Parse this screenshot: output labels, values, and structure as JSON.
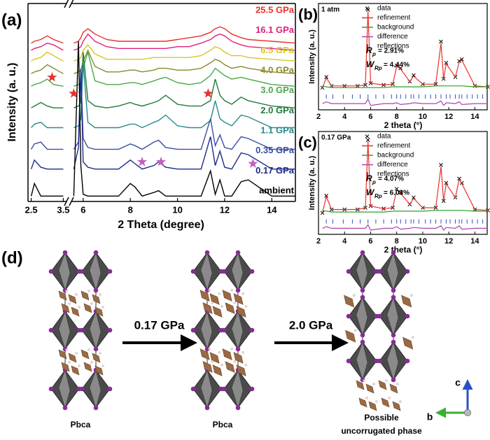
{
  "chart_data": [
    {
      "type": "line",
      "panel_label": "(a)",
      "x_label": "2 Theta (degree)",
      "y_label": "Intensity (a. u.)",
      "xlim": [
        2.4,
        15
      ],
      "xbreak": [
        3.6,
        5.5
      ],
      "ylim": [
        0,
        11
      ],
      "xticks": [
        2.5,
        3.5,
        6,
        8,
        10,
        12,
        14
      ],
      "x": [
        2.5,
        2.6,
        2.8,
        3.0,
        3.2,
        3.5,
        5.6,
        5.8,
        5.9,
        6.0,
        6.2,
        6.5,
        7.0,
        7.5,
        8.0,
        8.2,
        8.5,
        9.0,
        9.2,
        9.5,
        10.0,
        10.5,
        11.0,
        11.4,
        11.6,
        11.8,
        12.0,
        12.3,
        12.7,
        13.0,
        14.0,
        15.0
      ],
      "series": [
        {
          "name": "25.5 GPa",
          "color": "#e8302a",
          "values": [
            8.8,
            8.9,
            9.0,
            9.2,
            9.0,
            8.8,
            8.8,
            8.9,
            9.1,
            9.4,
            9.6,
            9.3,
            9.0,
            8.9,
            8.9,
            8.9,
            8.9,
            8.9,
            8.9,
            8.9,
            9.0,
            9.1,
            9.2,
            9.4,
            9.6,
            9.7,
            9.6,
            9.3,
            9.1,
            9.0,
            8.9,
            8.8
          ]
        },
        {
          "name": "16.1 GPa",
          "color": "#e0207a",
          "values": [
            8.4,
            8.5,
            8.6,
            8.8,
            8.7,
            8.4,
            8.4,
            8.5,
            8.6,
            8.9,
            9.3,
            8.9,
            8.6,
            8.5,
            8.5,
            8.5,
            8.5,
            8.5,
            8.5,
            8.5,
            8.6,
            8.6,
            8.8,
            9.0,
            9.2,
            9.3,
            9.2,
            8.9,
            8.7,
            8.6,
            8.5,
            8.4
          ]
        },
        {
          "name": "6.5 GPa",
          "color": "#d4c82a",
          "values": [
            7.8,
            7.9,
            8.0,
            8.3,
            8.1,
            7.8,
            7.8,
            7.9,
            8.0,
            8.4,
            8.7,
            8.2,
            7.9,
            7.9,
            7.9,
            7.9,
            7.9,
            8.0,
            8.0,
            8.0,
            8.0,
            8.0,
            8.1,
            8.4,
            8.6,
            8.5,
            8.3,
            8.1,
            8.1,
            8.0,
            7.9,
            7.8
          ]
        },
        {
          "name": "4.0 GPa",
          "color": "#8a8a2a",
          "values": [
            7.1,
            7.2,
            7.3,
            7.6,
            7.4,
            7.1,
            7.1,
            7.2,
            7.3,
            7.8,
            8.4,
            7.5,
            7.2,
            7.2,
            7.3,
            7.3,
            7.2,
            7.3,
            7.4,
            7.4,
            7.3,
            7.3,
            7.4,
            7.7,
            7.9,
            7.8,
            7.6,
            7.4,
            7.5,
            7.4,
            7.2,
            7.1
          ]
        },
        {
          "name": "3.0 GPa",
          "color": "#4aa84a",
          "values": [
            6.4,
            6.5,
            6.6,
            6.8,
            6.5,
            6.4,
            6.4,
            6.5,
            6.6,
            7.4,
            8.3,
            6.7,
            6.5,
            6.5,
            6.6,
            6.6,
            6.5,
            6.7,
            6.8,
            6.9,
            6.6,
            6.5,
            6.6,
            7.0,
            7.4,
            7.2,
            7.0,
            6.8,
            6.9,
            6.8,
            6.5,
            6.4
          ]
        },
        {
          "name": "2.0 GPa",
          "color": "#1e7a3a",
          "values": [
            5.2,
            5.3,
            5.5,
            5.3,
            5.2,
            5.2,
            5.2,
            5.3,
            5.5,
            8.3,
            5.6,
            5.3,
            5.2,
            5.3,
            5.5,
            5.4,
            5.3,
            5.5,
            5.6,
            5.9,
            5.4,
            5.3,
            5.3,
            5.6,
            6.8,
            5.9,
            5.6,
            5.4,
            5.8,
            5.6,
            5.3,
            5.2
          ]
        },
        {
          "name": "1.1 GPa",
          "color": "#2a8a8a",
          "values": [
            4.1,
            4.3,
            4.4,
            4.1,
            4.1,
            4.1,
            4.1,
            4.2,
            4.6,
            7.7,
            4.4,
            4.1,
            4.1,
            4.1,
            4.3,
            4.3,
            4.1,
            4.4,
            4.5,
            4.8,
            4.2,
            4.1,
            4.1,
            4.5,
            5.6,
            4.6,
            4.4,
            4.2,
            4.8,
            4.7,
            4.1,
            4.1
          ]
        },
        {
          "name": "0.35 GPa",
          "color": "#3a4fa0",
          "values": [
            2.9,
            3.2,
            3.3,
            2.9,
            2.9,
            2.9,
            2.9,
            3.3,
            7.4,
            3.5,
            3.0,
            2.9,
            2.9,
            2.9,
            3.2,
            3.1,
            2.9,
            3.3,
            3.4,
            3.0,
            2.9,
            2.9,
            2.9,
            4.6,
            3.1,
            3.7,
            3.0,
            2.9,
            3.6,
            3.5,
            2.9,
            2.9
          ]
        },
        {
          "name": "0.17 GPa",
          "color": "#1c2a8a",
          "values": [
            1.8,
            2.3,
            1.9,
            1.8,
            1.8,
            1.8,
            1.8,
            3.0,
            7.3,
            2.2,
            1.9,
            1.8,
            1.8,
            1.8,
            2.3,
            2.1,
            1.8,
            2.0,
            2.2,
            1.9,
            1.8,
            1.8,
            1.8,
            3.6,
            2.0,
            2.8,
            1.9,
            1.8,
            2.7,
            2.6,
            1.8,
            1.8
          ]
        },
        {
          "name": "ambient",
          "color": "#000000",
          "values": [
            0.3,
            1.0,
            0.3,
            0.3,
            0.3,
            0.3,
            0.3,
            8.9,
            2.0,
            0.4,
            0.3,
            0.3,
            0.3,
            0.3,
            1.0,
            0.8,
            0.3,
            0.5,
            0.6,
            0.3,
            0.3,
            0.3,
            0.3,
            1.7,
            0.4,
            1.2,
            0.3,
            0.3,
            1.1,
            1.2,
            0.3,
            0.3
          ]
        }
      ],
      "markers": [
        {
          "x": 3.15,
          "y": 6.9,
          "color": "#e8302a"
        },
        {
          "x": 5.6,
          "y": 6.0,
          "color": "#e8302a"
        },
        {
          "x": 11.3,
          "y": 6.0,
          "color": "#e8302a"
        },
        {
          "x": 8.5,
          "y": 2.2,
          "color": "#c060c0"
        },
        {
          "x": 9.3,
          "y": 2.2,
          "color": "#c060c0"
        },
        {
          "x": 13.2,
          "y": 2.1,
          "color": "#c060c0"
        }
      ]
    },
    {
      "type": "refinement",
      "panel_label": "(b)",
      "condition": "1 atm",
      "x_label": "2 theta (°)",
      "y_label": "Intensity (a. u.)",
      "xlim": [
        2,
        15
      ],
      "ylim": [
        -0.15,
        1.05
      ],
      "xticks": [
        2,
        4,
        6,
        8,
        10,
        12,
        14
      ],
      "legend": "top-right",
      "x": [
        2.3,
        2.6,
        3,
        4,
        5,
        5.6,
        5.8,
        6.0,
        7,
        7.7,
        8.0,
        8.3,
        9,
        9.3,
        10,
        11,
        11.4,
        11.6,
        11.8,
        12.5,
        12.8,
        13.0,
        14,
        15
      ],
      "series": [
        {
          "name": "data",
          "color": "#000000",
          "style": "marker",
          "values": [
            0.1,
            0.22,
            0.12,
            0.12,
            0.12,
            0.13,
            0.98,
            0.15,
            0.13,
            0.14,
            0.35,
            0.32,
            0.17,
            0.24,
            0.14,
            0.14,
            0.62,
            0.2,
            0.38,
            0.22,
            0.4,
            0.42,
            0.12,
            0.11
          ]
        },
        {
          "name": "refinement",
          "color": "#e8302a",
          "style": "line",
          "values": [
            0.1,
            0.21,
            0.12,
            0.12,
            0.12,
            0.13,
            0.96,
            0.15,
            0.13,
            0.14,
            0.34,
            0.31,
            0.17,
            0.23,
            0.14,
            0.14,
            0.6,
            0.2,
            0.37,
            0.22,
            0.39,
            0.41,
            0.12,
            0.11
          ]
        },
        {
          "name": "background",
          "color": "#2aa02a",
          "style": "line",
          "values": [
            0.12,
            0.11,
            0.1,
            0.1,
            0.1,
            0.1,
            0.1,
            0.1,
            0.1,
            0.11,
            0.11,
            0.11,
            0.11,
            0.11,
            0.11,
            0.12,
            0.12,
            0.12,
            0.12,
            0.12,
            0.12,
            0.12,
            0.11,
            0.11
          ]
        },
        {
          "name": "difference",
          "color": "#b040b0",
          "style": "line",
          "values": [
            -0.08,
            -0.06,
            -0.08,
            -0.08,
            -0.08,
            -0.08,
            -0.03,
            -0.1,
            -0.08,
            -0.08,
            -0.07,
            -0.09,
            -0.08,
            -0.07,
            -0.08,
            -0.08,
            -0.05,
            -0.1,
            -0.07,
            -0.08,
            -0.06,
            -0.09,
            -0.08,
            -0.08
          ]
        },
        {
          "name": "reflections",
          "color": "#3050c0",
          "style": "tick",
          "x": [
            2.6,
            3.1,
            3.9,
            4.6,
            5.2,
            5.8,
            6.4,
            7.0,
            7.6,
            8.0,
            8.3,
            8.7,
            9.1,
            9.3,
            9.7,
            10.2,
            10.6,
            11.0,
            11.4,
            11.8,
            12.1,
            12.5,
            12.8,
            13.0,
            13.4,
            13.8,
            14.2,
            14.6
          ]
        }
      ],
      "annotations": [
        {
          "symbol": "R",
          "sub": "p",
          "text": "= 2.91%"
        },
        {
          "symbol": "W",
          "sub": "Rp",
          "text": "= 4.44%"
        }
      ]
    },
    {
      "type": "refinement",
      "panel_label": "(c)",
      "condition": "0.17 GPa",
      "x_label": "2 theta (°)",
      "y_label": "Intensity (a. u.)",
      "xlim": [
        2,
        15
      ],
      "ylim": [
        -0.15,
        1.05
      ],
      "xticks": [
        2,
        4,
        6,
        8,
        10,
        12,
        14
      ],
      "legend": "top-right",
      "x": [
        2.3,
        2.6,
        3,
        4,
        5,
        5.6,
        5.8,
        6.0,
        7,
        7.7,
        8.0,
        8.3,
        9,
        9.3,
        10,
        11,
        11.4,
        11.6,
        11.8,
        12.5,
        12.8,
        13.0,
        14,
        15
      ],
      "series": [
        {
          "name": "data",
          "color": "#000000",
          "style": "marker",
          "values": [
            0.1,
            0.3,
            0.14,
            0.14,
            0.14,
            0.16,
            0.95,
            0.18,
            0.15,
            0.16,
            0.38,
            0.34,
            0.2,
            0.28,
            0.16,
            0.16,
            0.66,
            0.24,
            0.45,
            0.28,
            0.5,
            0.45,
            0.14,
            0.13
          ]
        },
        {
          "name": "refinement",
          "color": "#e8302a",
          "style": "line",
          "values": [
            0.1,
            0.29,
            0.14,
            0.14,
            0.14,
            0.16,
            0.93,
            0.18,
            0.15,
            0.16,
            0.37,
            0.33,
            0.2,
            0.27,
            0.16,
            0.16,
            0.64,
            0.24,
            0.44,
            0.28,
            0.49,
            0.44,
            0.14,
            0.13
          ]
        },
        {
          "name": "background",
          "color": "#2aa02a",
          "style": "line",
          "values": [
            0.13,
            0.12,
            0.11,
            0.11,
            0.11,
            0.11,
            0.11,
            0.11,
            0.11,
            0.12,
            0.12,
            0.12,
            0.12,
            0.12,
            0.12,
            0.13,
            0.13,
            0.13,
            0.13,
            0.13,
            0.13,
            0.13,
            0.12,
            0.12
          ]
        },
        {
          "name": "difference",
          "color": "#b040b0",
          "style": "line",
          "values": [
            -0.08,
            -0.06,
            -0.08,
            -0.08,
            -0.08,
            -0.08,
            -0.04,
            -0.1,
            -0.08,
            -0.08,
            -0.06,
            -0.09,
            -0.08,
            -0.07,
            -0.08,
            -0.08,
            -0.05,
            -0.1,
            -0.07,
            -0.08,
            -0.05,
            -0.09,
            -0.08,
            -0.08
          ]
        },
        {
          "name": "reflections",
          "color": "#3050c0",
          "style": "tick",
          "x": [
            2.6,
            3.1,
            3.9,
            4.6,
            5.2,
            5.8,
            6.4,
            7.0,
            7.6,
            8.0,
            8.3,
            8.7,
            9.1,
            9.3,
            9.7,
            10.2,
            10.6,
            11.0,
            11.4,
            11.8,
            12.1,
            12.5,
            12.8,
            13.0,
            13.4,
            13.8,
            14.2,
            14.6
          ]
        }
      ],
      "annotations": [
        {
          "symbol": "R",
          "sub": "p",
          "text": "= 4.07%"
        },
        {
          "symbol": "W",
          "sub": "Rp",
          "text": "= 6.03%"
        }
      ]
    }
  ],
  "diagram": {
    "panel_label": "(d)",
    "arrows": [
      {
        "label": "0.17 GPa"
      },
      {
        "label": "2.0 GPa"
      }
    ],
    "structures": [
      {
        "label": [
          "Pbca"
        ]
      },
      {
        "label": [
          "Pbca"
        ]
      },
      {
        "label": [
          "Possible",
          "uncorrugated phase"
        ]
      }
    ],
    "axes": {
      "up": "c",
      "left": "b"
    }
  }
}
